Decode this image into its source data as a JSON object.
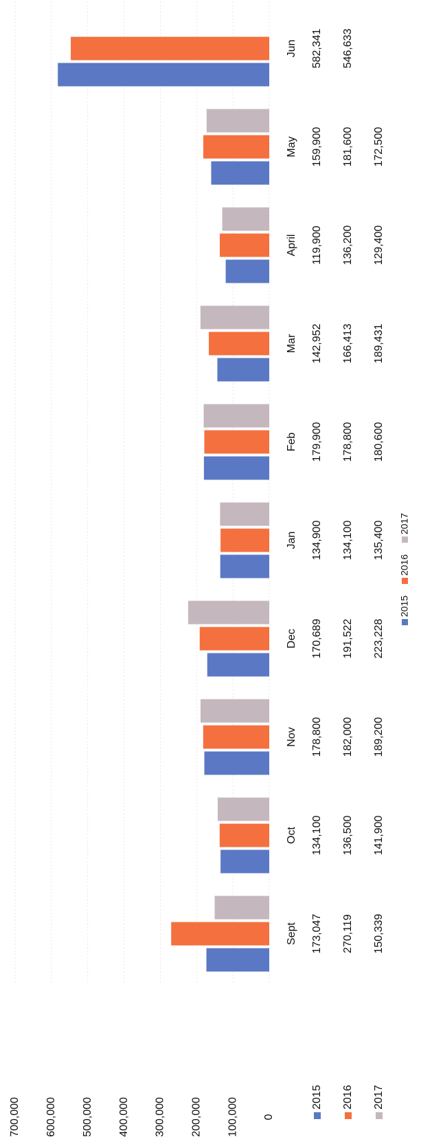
{
  "chart_data": {
    "type": "bar",
    "categories": [
      "Sept",
      "Oct",
      "Nov",
      "Dec",
      "Jan",
      "Feb",
      "Mar",
      "April",
      "May",
      "Jun"
    ],
    "series": [
      {
        "name": "2015",
        "color": "#5b78c4",
        "values": [
          173047,
          134100,
          178800,
          170689,
          134900,
          179900,
          142952,
          119900,
          159900,
          582341
        ],
        "value_labels": [
          "173,047",
          "134,100",
          "178,800",
          "170,689",
          "134,900",
          "179,900",
          "142,952",
          "119,900",
          "159,900",
          "582,341"
        ]
      },
      {
        "name": "2016",
        "color": "#f4703f",
        "values": [
          270119,
          136500,
          182000,
          191522,
          134100,
          178800,
          166413,
          136200,
          181600,
          546633
        ],
        "value_labels": [
          "270,119",
          "136,500",
          "182,000",
          "191,522",
          "134,100",
          "178,800",
          "166,413",
          "136,200",
          "181,600",
          "546,633"
        ]
      },
      {
        "name": "2017",
        "color": "#c4b8be",
        "values": [
          150339,
          141900,
          189200,
          223228,
          135400,
          180600,
          189431,
          129400,
          172500,
          null
        ],
        "value_labels": [
          "150,339",
          "141,900",
          "189,200",
          "223,228",
          "135,400",
          "180,600",
          "189,431",
          "129,400",
          "172,500",
          null
        ]
      }
    ],
    "ylim": [
      0,
      700000
    ],
    "yticks": [
      0,
      {
        "value": 100000,
        "label": "100,000"
      },
      {
        "value": 200000,
        "label": "200,000"
      },
      {
        "value": 300000,
        "label": "300,000"
      },
      {
        "value": 400000,
        "label": "400,000"
      },
      {
        "value": 500000,
        "label": "500,000"
      },
      {
        "value": 600000,
        "label": "600,000"
      },
      {
        "value": 700000,
        "label": "700,000"
      }
    ],
    "grid": true,
    "legend": "bottom",
    "data_table": true
  }
}
